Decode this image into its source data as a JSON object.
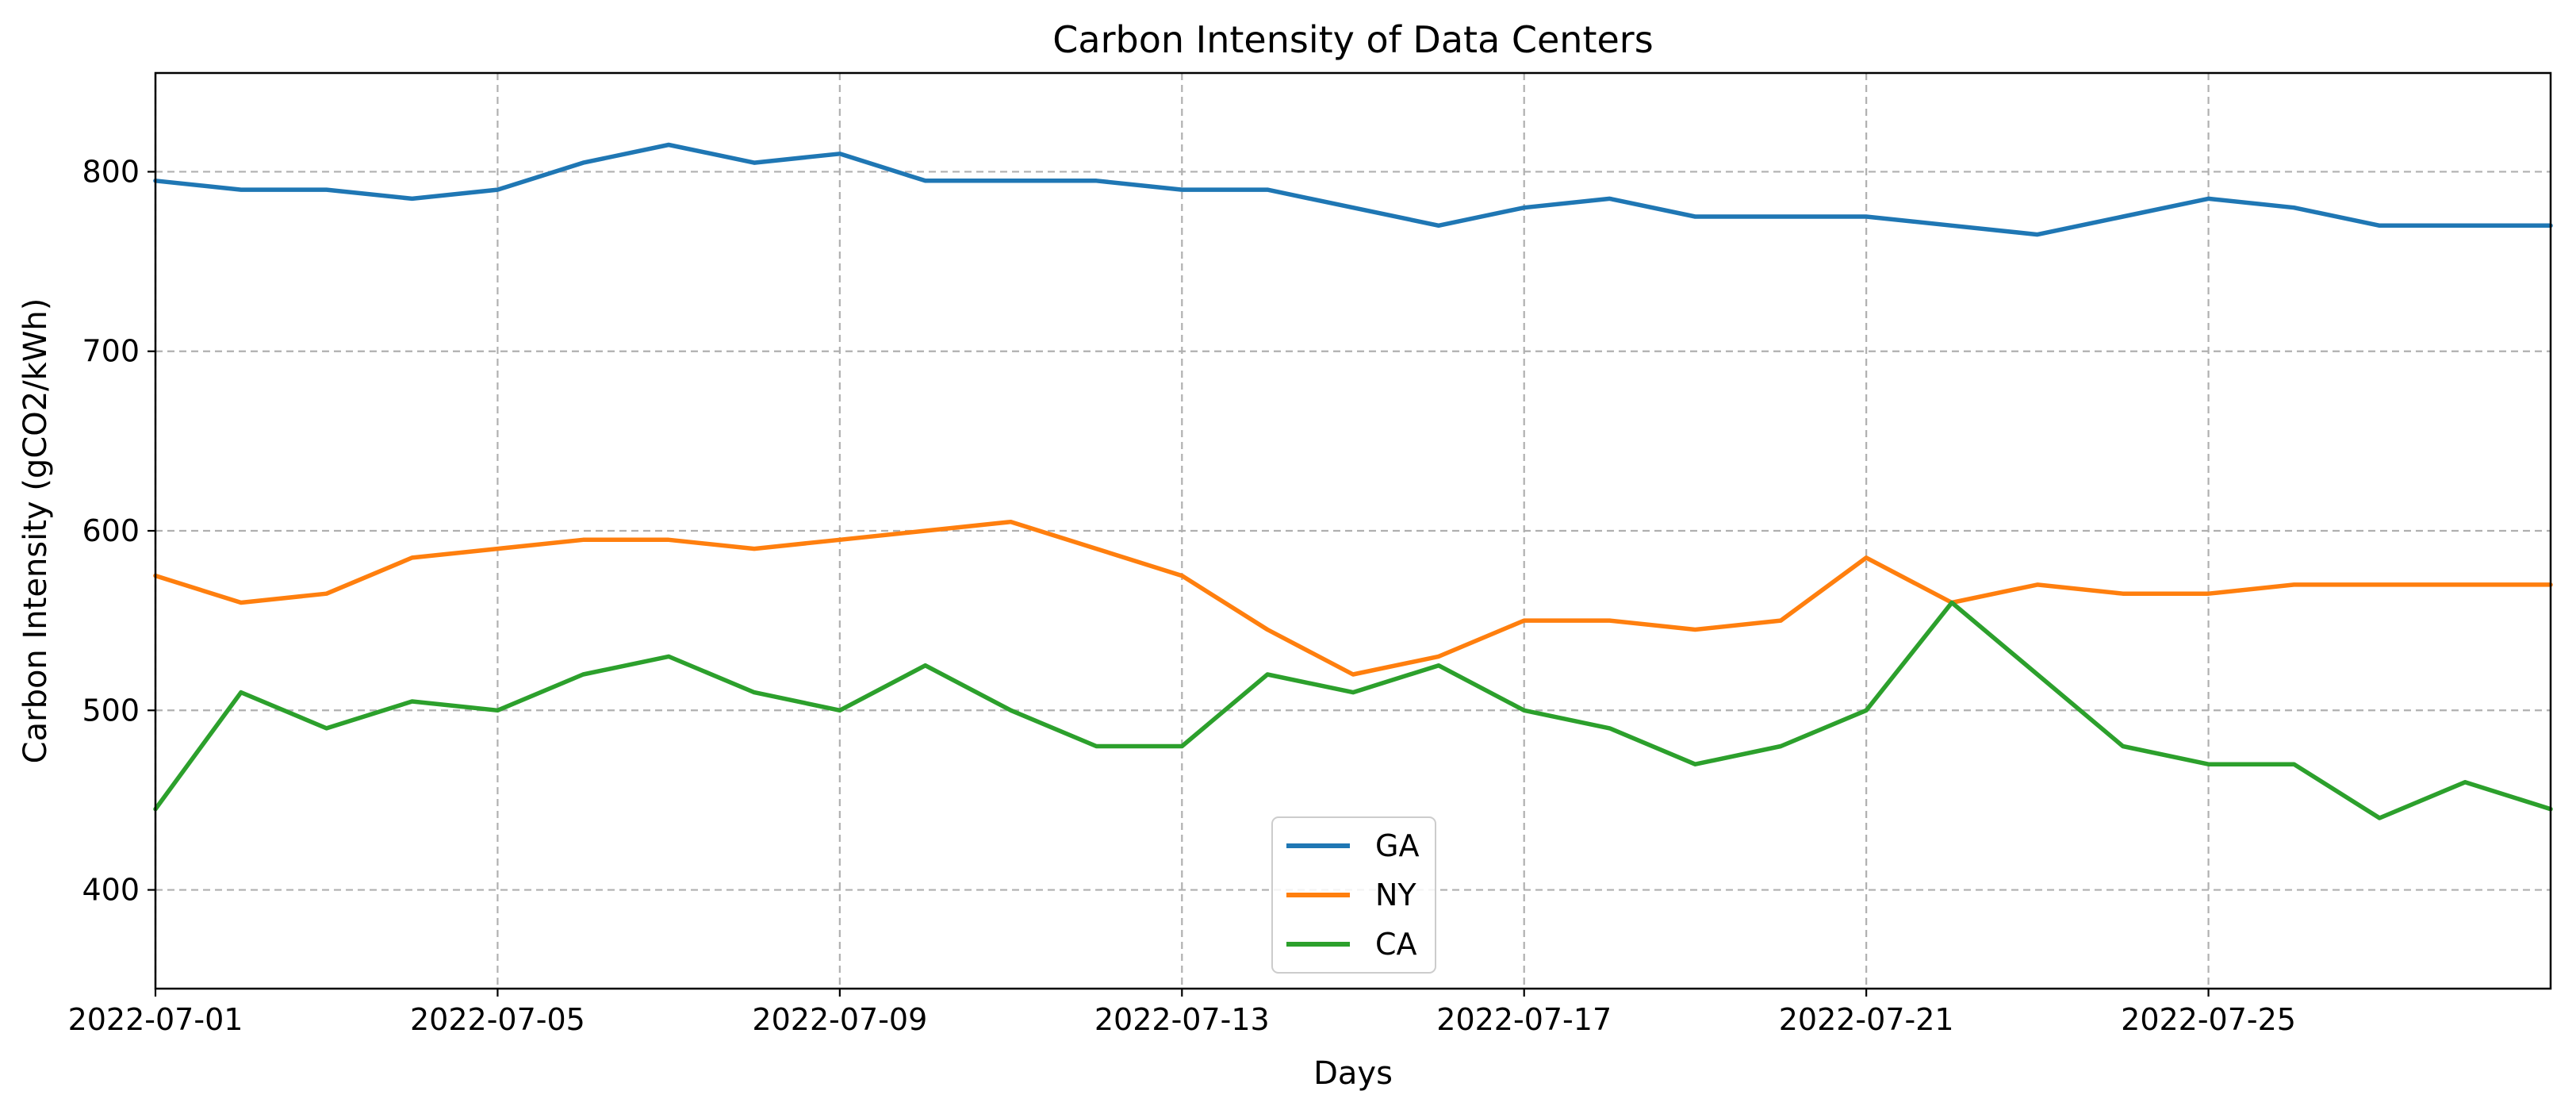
{
  "chart_data": {
    "type": "line",
    "title": "Carbon Intensity of Data Centers",
    "xlabel": "Days",
    "ylabel": "Carbon Intensity (gCO2/kWh)",
    "x_start": "2022-07-01",
    "x_end": "2022-07-29",
    "xlim": [
      "2022-07-01",
      "2022-07-29"
    ],
    "x_ticks": [
      "2022-07-01",
      "2022-07-05",
      "2022-07-09",
      "2022-07-13",
      "2022-07-17",
      "2022-07-21",
      "2022-07-25"
    ],
    "ylim": [
      345,
      855
    ],
    "y_ticks": [
      400,
      500,
      600,
      700,
      800
    ],
    "grid": true,
    "legend_position": "bottom-center",
    "series": [
      {
        "name": "GA",
        "color": "#1f77b4",
        "x": [
          "2022-07-01",
          "2022-07-02",
          "2022-07-03",
          "2022-07-04",
          "2022-07-05",
          "2022-07-06",
          "2022-07-07",
          "2022-07-08",
          "2022-07-09",
          "2022-07-10",
          "2022-07-11",
          "2022-07-12",
          "2022-07-13",
          "2022-07-14",
          "2022-07-15",
          "2022-07-16",
          "2022-07-17",
          "2022-07-18",
          "2022-07-19",
          "2022-07-20",
          "2022-07-21",
          "2022-07-22",
          "2022-07-23",
          "2022-07-24",
          "2022-07-25",
          "2022-07-26",
          "2022-07-27",
          "2022-07-28",
          "2022-07-29"
        ],
        "values": [
          795,
          790,
          790,
          785,
          790,
          805,
          815,
          805,
          810,
          795,
          795,
          795,
          790,
          790,
          780,
          770,
          780,
          785,
          775,
          775,
          775,
          770,
          765,
          775,
          785,
          780,
          770,
          770,
          770
        ]
      },
      {
        "name": "NY",
        "color": "#ff7f0e",
        "x": [
          "2022-07-01",
          "2022-07-02",
          "2022-07-03",
          "2022-07-04",
          "2022-07-05",
          "2022-07-06",
          "2022-07-07",
          "2022-07-08",
          "2022-07-09",
          "2022-07-10",
          "2022-07-11",
          "2022-07-12",
          "2022-07-13",
          "2022-07-14",
          "2022-07-15",
          "2022-07-16",
          "2022-07-17",
          "2022-07-18",
          "2022-07-19",
          "2022-07-20",
          "2022-07-21",
          "2022-07-22",
          "2022-07-23",
          "2022-07-24",
          "2022-07-25",
          "2022-07-26",
          "2022-07-27",
          "2022-07-28",
          "2022-07-29"
        ],
        "values": [
          575,
          560,
          565,
          585,
          590,
          595,
          595,
          590,
          595,
          600,
          605,
          590,
          575,
          545,
          520,
          530,
          550,
          550,
          545,
          550,
          585,
          560,
          570,
          565,
          565,
          570,
          570,
          570,
          570
        ]
      },
      {
        "name": "CA",
        "color": "#2ca02c",
        "x": [
          "2022-07-01",
          "2022-07-02",
          "2022-07-03",
          "2022-07-04",
          "2022-07-05",
          "2022-07-06",
          "2022-07-07",
          "2022-07-08",
          "2022-07-09",
          "2022-07-10",
          "2022-07-11",
          "2022-07-12",
          "2022-07-13",
          "2022-07-14",
          "2022-07-15",
          "2022-07-16",
          "2022-07-17",
          "2022-07-18",
          "2022-07-19",
          "2022-07-20",
          "2022-07-21",
          "2022-07-22",
          "2022-07-23",
          "2022-07-24",
          "2022-07-25",
          "2022-07-26",
          "2022-07-27",
          "2022-07-28",
          "2022-07-29"
        ],
        "values": [
          445,
          510,
          490,
          505,
          500,
          520,
          530,
          510,
          500,
          525,
          500,
          480,
          480,
          520,
          510,
          525,
          500,
          490,
          470,
          480,
          500,
          560,
          520,
          480,
          470,
          470,
          440,
          460,
          445
        ]
      }
    ]
  }
}
